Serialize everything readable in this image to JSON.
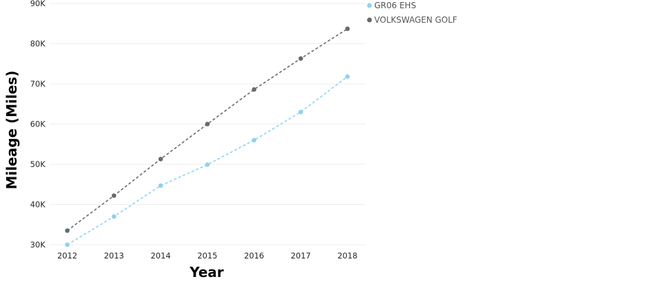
{
  "chart_data": {
    "type": "line",
    "title": "",
    "xlabel": "Year",
    "ylabel": "Mileage (Miles)",
    "categories": [
      "2012",
      "2013",
      "2014",
      "2015",
      "2016",
      "2017",
      "2018"
    ],
    "ylim": [
      30000,
      90000
    ],
    "yticks": [
      30000,
      40000,
      50000,
      60000,
      70000,
      80000,
      90000
    ],
    "ytick_labels": [
      "30K",
      "40K",
      "50K",
      "60K",
      "70K",
      "80K",
      "90K"
    ],
    "grid": true,
    "legend_position": "top-right",
    "series": [
      {
        "name": "GR06 EHS",
        "color": "#8fd3ef",
        "line_style": "dashed",
        "values": [
          30000,
          37000,
          44700,
          49900,
          56000,
          63000,
          71800
        ]
      },
      {
        "name": "VOLKSWAGEN GOLF",
        "color": "#666b6e",
        "line_style": "dashed",
        "values": [
          33500,
          42200,
          51300,
          60000,
          68600,
          76300,
          83700
        ]
      }
    ]
  }
}
